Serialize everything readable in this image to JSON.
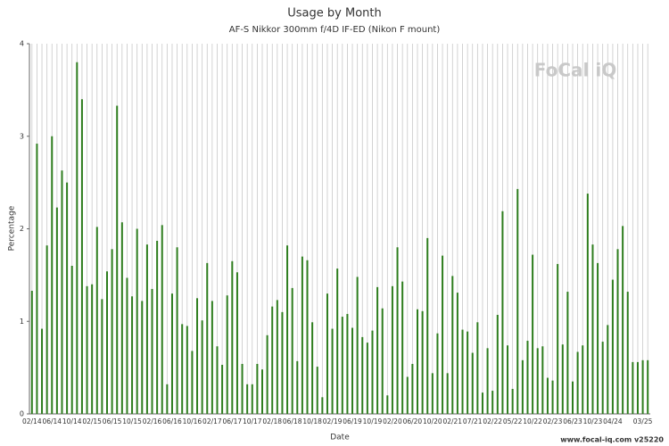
{
  "chart_data": {
    "type": "bar",
    "title": "Usage by Month",
    "subtitle": "AF-S Nikkor 300mm f/4D IF-ED (Nikon F mount)",
    "xlabel": "Date",
    "ylabel": "Percentage",
    "watermark": "FoCal iQ",
    "footer": "www.focal-iq.com  v25220",
    "color": "#2e7d1e",
    "ylim": [
      0,
      4
    ],
    "yticks": [
      0,
      1,
      2,
      3,
      4
    ],
    "grid": true,
    "categories": [
      "02/14",
      null,
      null,
      null,
      "06/14",
      null,
      null,
      null,
      "10/14",
      null,
      null,
      null,
      "02/15",
      null,
      null,
      null,
      "06/15",
      null,
      null,
      null,
      "10/15",
      null,
      null,
      null,
      "02/16",
      null,
      null,
      null,
      "06/16",
      null,
      null,
      null,
      "10/16",
      null,
      null,
      null,
      "02/17",
      null,
      null,
      null,
      "06/17",
      null,
      null,
      null,
      "10/17",
      null,
      null,
      null,
      "02/18",
      null,
      null,
      null,
      "06/18",
      null,
      null,
      null,
      "10/18",
      null,
      null,
      null,
      "02/19",
      null,
      null,
      null,
      "06/19",
      null,
      null,
      null,
      "10/19",
      null,
      null,
      null,
      "02/20",
      null,
      null,
      null,
      "06/20",
      null,
      null,
      null,
      "10/20",
      null,
      null,
      null,
      "02/21",
      null,
      null,
      null,
      "07/21",
      null,
      null,
      null,
      "02/22",
      null,
      null,
      null,
      "05/22",
      null,
      null,
      null,
      "10/22",
      null,
      null,
      null,
      "02/23",
      null,
      null,
      null,
      "06/23",
      null,
      null,
      null,
      "10/23",
      null,
      null,
      null,
      "04/24",
      null,
      null,
      null,
      null,
      null,
      "03/25",
      null
    ],
    "values": [
      1.33,
      2.92,
      0.92,
      1.82,
      3.0,
      2.23,
      2.63,
      2.5,
      1.6,
      3.8,
      3.4,
      1.38,
      1.4,
      2.02,
      1.24,
      1.54,
      1.78,
      3.33,
      2.07,
      1.47,
      1.27,
      2.0,
      1.22,
      1.83,
      1.35,
      1.87,
      2.04,
      0.32,
      1.3,
      1.8,
      0.97,
      0.95,
      0.68,
      1.25,
      1.01,
      1.63,
      1.22,
      0.73,
      0.53,
      1.28,
      1.65,
      1.53,
      0.54,
      0.32,
      0.32,
      0.54,
      0.48,
      0.85,
      1.16,
      1.23,
      1.1,
      1.82,
      1.36,
      0.57,
      1.7,
      1.66,
      0.99,
      0.51,
      0.18,
      1.3,
      0.92,
      1.57,
      1.05,
      1.08,
      0.93,
      1.48,
      0.83,
      0.77,
      0.9,
      1.37,
      1.14,
      0.2,
      1.38,
      1.8,
      1.43,
      0.4,
      0.54,
      1.13,
      1.11,
      1.9,
      0.44,
      0.87,
      1.71,
      0.44,
      1.49,
      1.31,
      0.91,
      0.89,
      0.66,
      0.99,
      0.23,
      0.71,
      0.25,
      1.07,
      2.19,
      0.74,
      0.27,
      2.43,
      0.58,
      0.79,
      1.72,
      0.71,
      0.73,
      0.39,
      0.36,
      1.62,
      0.75,
      1.32,
      0.35,
      0.67,
      0.74,
      2.38,
      1.83,
      1.63,
      0.78,
      0.96,
      1.45,
      1.78,
      2.03,
      1.32,
      0.56,
      0.56,
      0.58,
      0.58
    ]
  }
}
